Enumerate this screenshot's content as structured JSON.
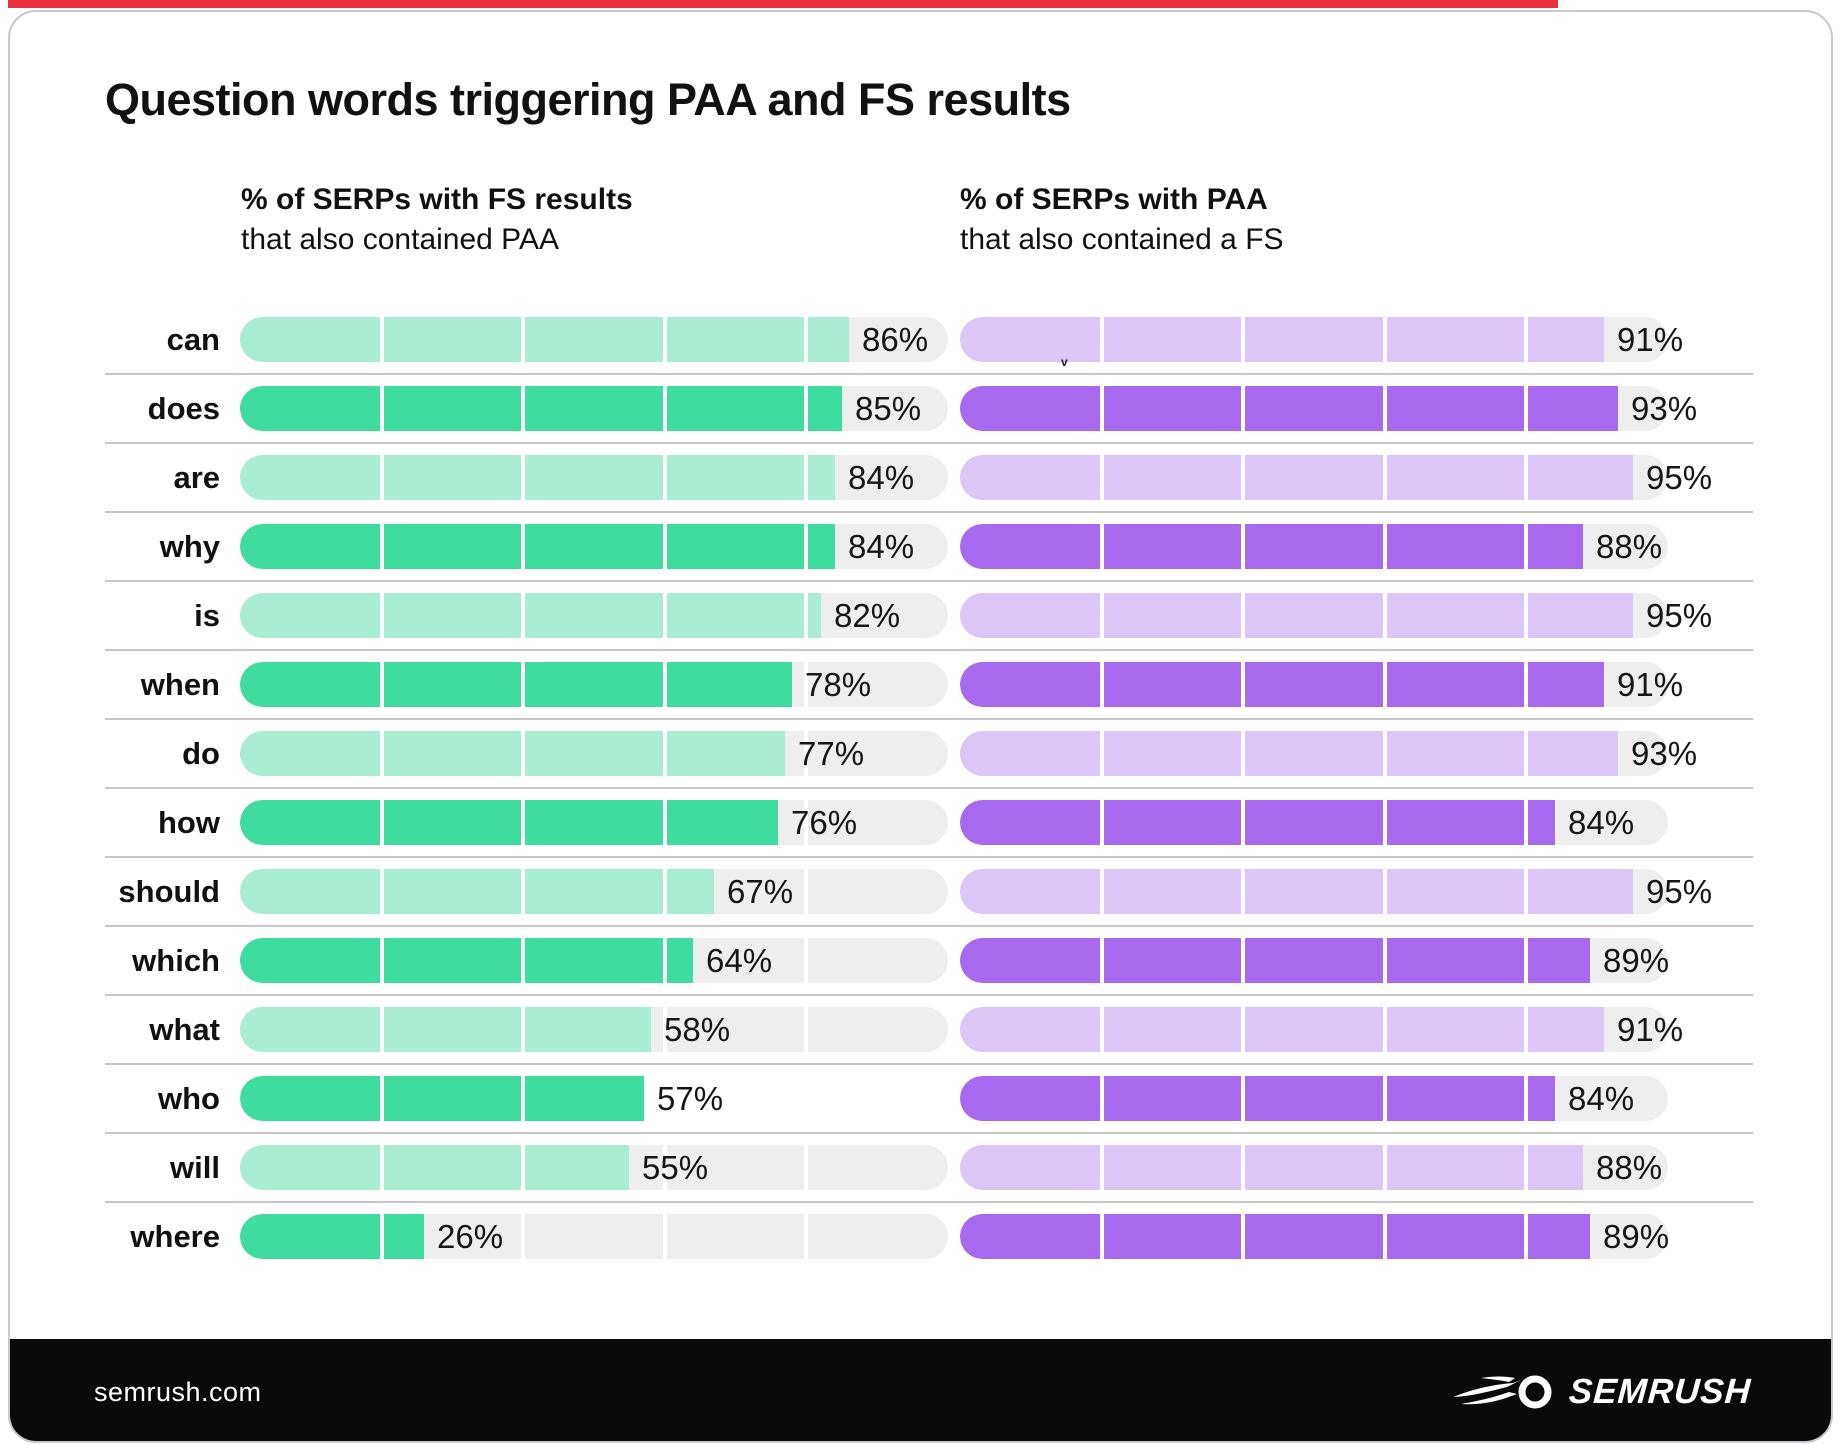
{
  "page": {
    "title": "Question words triggering PAA and FS results"
  },
  "columns": [
    {
      "title_bold": "% of SERPs with FS results",
      "subtitle": "that also contained PAA"
    },
    {
      "title_bold": "% of SERPs with PAA",
      "subtitle": "that also contained a FS"
    }
  ],
  "footer": {
    "site": "semrush.com",
    "brand": "semrush",
    "logo_icon": "comet-flame-icon"
  },
  "stray_mark": "v",
  "colors": {
    "green_light": "#A9EDD2",
    "green_dark": "#3FDCA0",
    "purple_light": "#DCC6F8",
    "purple_dark": "#A969EE",
    "track_gray": "#EFEEEE",
    "accent_red": "#E8313B",
    "footer_black": "#0A0A0A",
    "separator": "#C6C6C6"
  },
  "chart_data": {
    "type": "bar",
    "orientation": "horizontal",
    "title": "Question words triggering PAA and FS results",
    "categories": [
      "can",
      "does",
      "are",
      "why",
      "is",
      "when",
      "do",
      "how",
      "should",
      "which",
      "what",
      "who",
      "will",
      "where"
    ],
    "series": [
      {
        "name": "% of SERPs with FS results that also contained PAA",
        "values": [
          86,
          85,
          84,
          84,
          82,
          78,
          77,
          76,
          67,
          64,
          58,
          57,
          55,
          26
        ],
        "unit": "%"
      },
      {
        "name": "% of SERPs with PAA that also contained a FS",
        "values": [
          91,
          93,
          95,
          88,
          95,
          91,
          93,
          84,
          95,
          89,
          91,
          84,
          88,
          89
        ],
        "unit": "%"
      }
    ],
    "xlim": [
      0,
      100
    ],
    "segment_step_percent": 20,
    "value_labels": true,
    "row_color_alternates": "light shade on even rows, dark shade on odd rows",
    "quirk": "left column 'who' row has no gray background track",
    "grid": "row separator lines between categories",
    "legend_position": "column headers above each bar group"
  }
}
